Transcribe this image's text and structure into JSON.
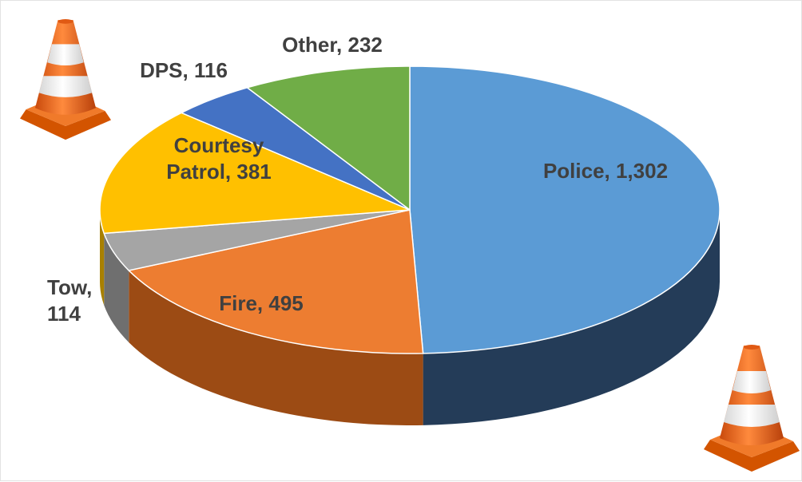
{
  "chart_data": {
    "type": "pie",
    "style": "3d",
    "title": "",
    "categories": [
      "Police",
      "Fire",
      "Tow",
      "Courtesy Patrol",
      "DPS",
      "Other"
    ],
    "values": [
      1302,
      495,
      114,
      381,
      116,
      232
    ],
    "labels": [
      [
        "Police, 1,302"
      ],
      [
        "Fire, 495"
      ],
      [
        "Tow,",
        "114"
      ],
      [
        "Courtesy",
        "Patrol, 381"
      ],
      [
        "DPS, 116"
      ],
      [
        "Other, 232"
      ]
    ],
    "colors": [
      "#5b9bd5",
      "#ed7d31",
      "#a5a5a5",
      "#ffc000",
      "#4472c4",
      "#70ad47"
    ],
    "side_colors": [
      "#243c58",
      "#9c4b14",
      "#6f6f6f",
      "#a88000",
      "#2c4c87",
      "#4a7531"
    ],
    "decorations": [
      "traffic-cone-icon",
      "traffic-cone-icon"
    ]
  }
}
